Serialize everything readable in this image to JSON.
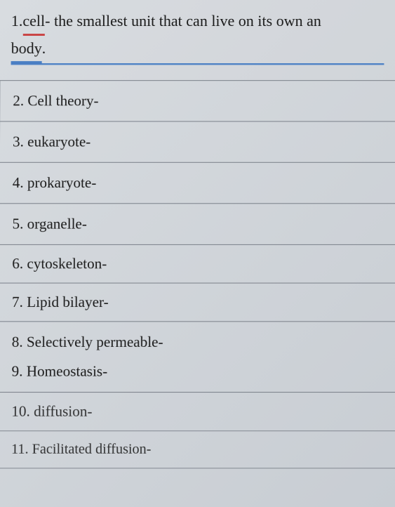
{
  "header": {
    "number": "1.",
    "word_underlined": "cell",
    "after_word": "- the smallest unit that can live on its own an",
    "second_line_underlined": "body",
    "second_line_suffix": "."
  },
  "rows": [
    {
      "number": "2.",
      "term": "Cell theory-"
    },
    {
      "number": "3.",
      "term": "eukaryote-"
    },
    {
      "number": "4.",
      "term": "prokaryote-"
    },
    {
      "number": "5.",
      "term": "organelle-"
    },
    {
      "number": "6.",
      "term": "cytoskeleton-"
    },
    {
      "number": "7.",
      "term": "Lipid bilayer-"
    },
    {
      "number": "8.",
      "term": "Selectively permeable-"
    },
    {
      "number": "9.",
      "term": "Homeostasis-"
    },
    {
      "number": "10.",
      "term": "diffusion-"
    },
    {
      "number": "11.",
      "term": "Facilitated diffusion-"
    }
  ],
  "colors": {
    "red_underline": "#c94545",
    "blue_underline": "#4a7fc4",
    "border": "#7a8089",
    "text": "#1a1a1a",
    "background_start": "#d8dce0",
    "background_end": "#c8cdd3"
  },
  "typography": {
    "header_fontsize": 22,
    "row_fontsize": 21,
    "font_family": "serif"
  }
}
